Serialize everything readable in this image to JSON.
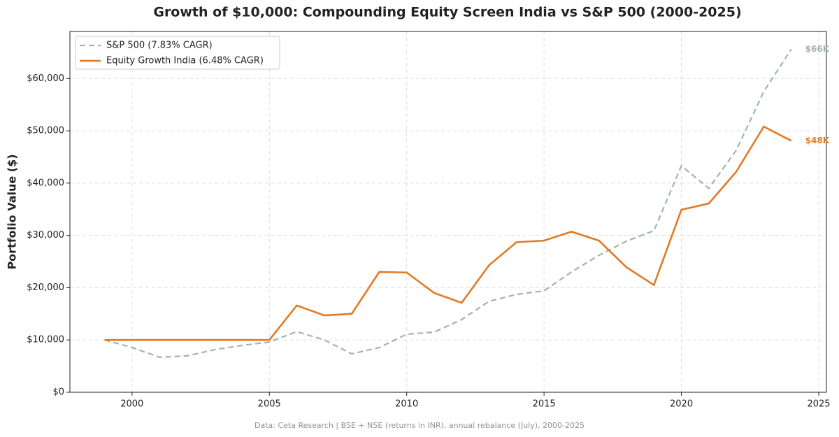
{
  "chart_data": {
    "type": "line",
    "title": "Growth of $10,000: Compounding Equity Screen India vs S&P 500 (2000-2025)",
    "y_label": "Portfolio Value ($)",
    "source": "Data: Ceta Research | BSE + NSE (returns in INR), annual rebalance (July), 2000-2025",
    "x": [
      1999,
      2000,
      2001,
      2002,
      2003,
      2004,
      2005,
      2006,
      2007,
      2008,
      2009,
      2010,
      2011,
      2012,
      2013,
      2014,
      2015,
      2016,
      2017,
      2018,
      2019,
      2020,
      2021,
      2022,
      2023,
      2024
    ],
    "series": [
      {
        "name": "S&P 500 (7.83% CAGR)",
        "color": "#a3b3ae",
        "style": "dashed",
        "end_label": "$66K",
        "values": [
          10000,
          8560,
          6700,
          6950,
          8150,
          8950,
          9600,
          11600,
          10000,
          7350,
          8550,
          11100,
          11500,
          13900,
          17400,
          18700,
          19400,
          23000,
          26200,
          28900,
          30900,
          43300,
          39000,
          46300,
          57500,
          65600
        ]
      },
      {
        "name": "Equity Growth India (6.48% CAGR)",
        "color": "#e07b24",
        "style": "solid",
        "end_label": "$48K",
        "values": [
          10000,
          10000,
          10000,
          10000,
          10000,
          10000,
          10000,
          16600,
          14700,
          15000,
          23000,
          22900,
          19000,
          17100,
          24300,
          28700,
          29000,
          30700,
          29000,
          23900,
          20500,
          34900,
          36100,
          42200,
          50800,
          48100
        ]
      }
    ],
    "xlim": [
      1997.74,
      2025.28
    ],
    "xticks": [
      2000,
      2005,
      2010,
      2015,
      2020,
      2025
    ],
    "ylim": [
      0,
      69000
    ],
    "yticks": [
      {
        "value": 0,
        "label": "$0"
      },
      {
        "value": 10000,
        "label": "$10,000"
      },
      {
        "value": 20000,
        "label": "$20,000"
      },
      {
        "value": 30000,
        "label": "$30,000"
      },
      {
        "value": 40000,
        "label": "$40,000"
      },
      {
        "value": 50000,
        "label": "$50,000"
      },
      {
        "value": 60000,
        "label": "$60,000"
      }
    ],
    "grid": true,
    "legend": "upper-left"
  }
}
